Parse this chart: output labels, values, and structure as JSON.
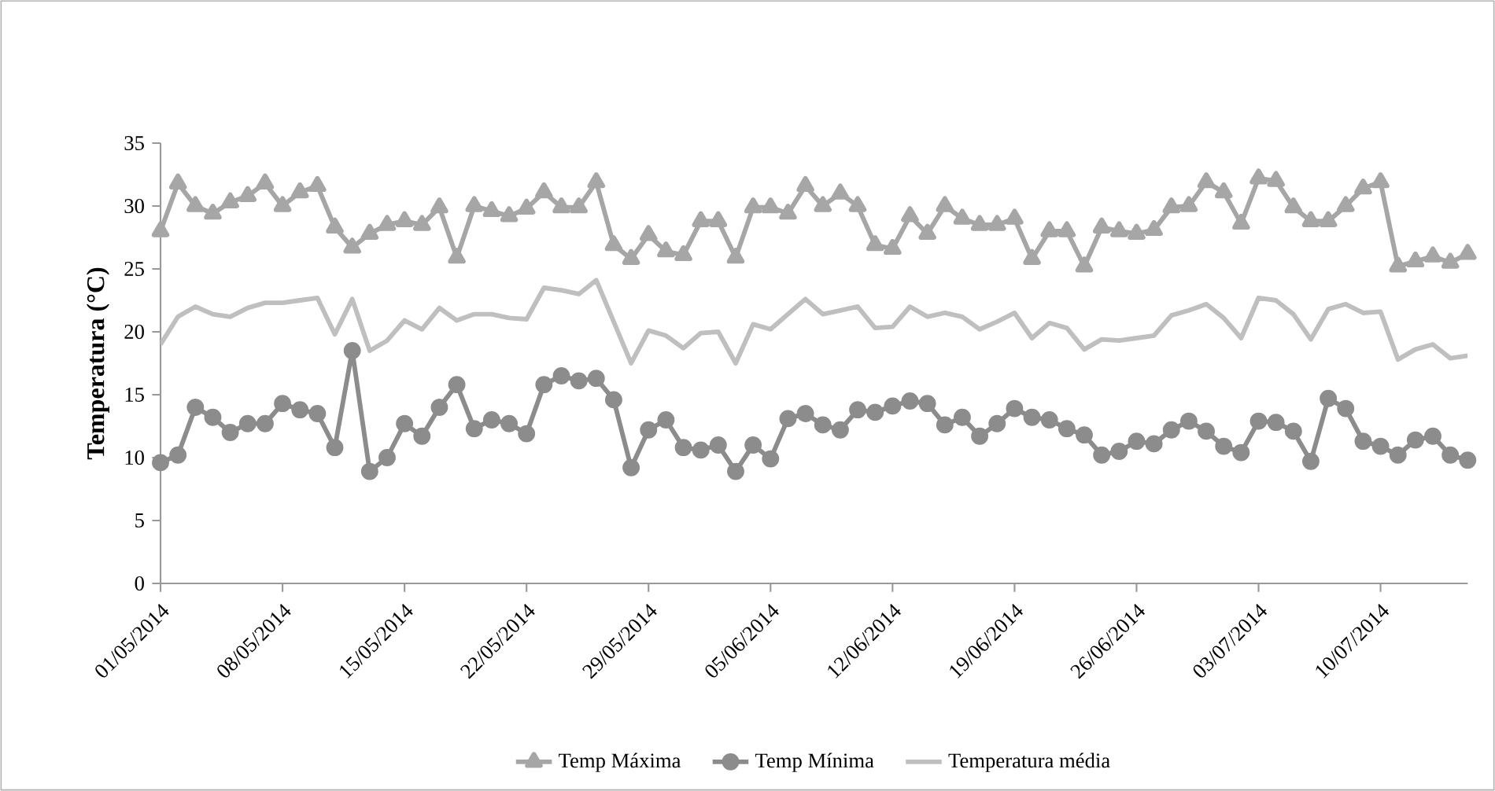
{
  "chart_data": {
    "type": "line",
    "ylabel": "Temperatura  (°C)",
    "legend": "bottom",
    "grid": false,
    "x": [
      "2014-05-01",
      "2014-05-02",
      "2014-05-03",
      "2014-05-04",
      "2014-05-05",
      "2014-05-06",
      "2014-05-07",
      "2014-05-08",
      "2014-05-09",
      "2014-05-10",
      "2014-05-11",
      "2014-05-12",
      "2014-05-13",
      "2014-05-14",
      "2014-05-15",
      "2014-05-16",
      "2014-05-17",
      "2014-05-18",
      "2014-05-19",
      "2014-05-20",
      "2014-05-21",
      "2014-05-22",
      "2014-05-23",
      "2014-05-24",
      "2014-05-25",
      "2014-05-26",
      "2014-05-27",
      "2014-05-28",
      "2014-05-29",
      "2014-05-30",
      "2014-05-31",
      "2014-06-01",
      "2014-06-02",
      "2014-06-03",
      "2014-06-04",
      "2014-06-05",
      "2014-06-06",
      "2014-06-07",
      "2014-06-08",
      "2014-06-09",
      "2014-06-10",
      "2014-06-11",
      "2014-06-12",
      "2014-06-13",
      "2014-06-14",
      "2014-06-15",
      "2014-06-16",
      "2014-06-17",
      "2014-06-18",
      "2014-06-19",
      "2014-06-20",
      "2014-06-21",
      "2014-06-22",
      "2014-06-23",
      "2014-06-24",
      "2014-06-25",
      "2014-06-26",
      "2014-06-27",
      "2014-06-28",
      "2014-06-29",
      "2014-06-30",
      "2014-07-01",
      "2014-07-02",
      "2014-07-03",
      "2014-07-04",
      "2014-07-05",
      "2014-07-06",
      "2014-07-07",
      "2014-07-08",
      "2014-07-09",
      "2014-07-10",
      "2014-07-11",
      "2014-07-12",
      "2014-07-13",
      "2014-07-14",
      "2014-07-15"
    ],
    "xlim": [
      "2014-05-01",
      "2014-07-15"
    ],
    "xticks": [
      {
        "value": "2014-05-01",
        "label": "01/05/2014"
      },
      {
        "value": "2014-05-08",
        "label": "08/05/2014"
      },
      {
        "value": "2014-05-15",
        "label": "15/05/2014"
      },
      {
        "value": "2014-05-22",
        "label": "22/05/2014"
      },
      {
        "value": "2014-05-29",
        "label": "29/05/2014"
      },
      {
        "value": "2014-06-05",
        "label": "05/06/2014"
      },
      {
        "value": "2014-06-12",
        "label": "12/06/2014"
      },
      {
        "value": "2014-06-19",
        "label": "19/06/2014"
      },
      {
        "value": "2014-06-26",
        "label": "26/06/2014"
      },
      {
        "value": "2014-07-03",
        "label": "03/07/2014"
      },
      {
        "value": "2014-07-10",
        "label": "10/07/2014"
      }
    ],
    "ylim": [
      0,
      35
    ],
    "yticks": [
      0,
      5,
      10,
      15,
      20,
      25,
      30,
      35
    ],
    "series": [
      {
        "name": "Temp Máxima",
        "color": "#a6a6a6",
        "marker": "triangle",
        "values": [
          28.0,
          31.8,
          30.0,
          29.4,
          30.3,
          30.8,
          31.8,
          30.0,
          31.1,
          31.6,
          28.3,
          26.7,
          27.8,
          28.5,
          28.8,
          28.5,
          29.9,
          25.9,
          30.0,
          29.6,
          29.2,
          29.8,
          31.1,
          29.9,
          29.9,
          31.9,
          26.9,
          25.8,
          27.7,
          26.4,
          26.1,
          28.8,
          28.8,
          25.9,
          29.9,
          29.9,
          29.4,
          31.6,
          30.0,
          31.0,
          30.0,
          26.9,
          26.6,
          29.2,
          27.8,
          30.0,
          29.0,
          28.5,
          28.5,
          29.0,
          25.8,
          28.0,
          28.0,
          25.2,
          28.3,
          28.0,
          27.8,
          28.1,
          29.9,
          30.0,
          31.9,
          31.1,
          28.6,
          32.2,
          32.0,
          29.9,
          28.8,
          28.8,
          30.0,
          31.4,
          31.9,
          25.2,
          25.6,
          26.0,
          25.5,
          26.2
        ]
      },
      {
        "name": "Temp Mínima",
        "color": "#8c8c8c",
        "marker": "circle",
        "values": [
          9.6,
          10.2,
          14.0,
          13.2,
          12.0,
          12.7,
          12.7,
          14.3,
          13.8,
          13.5,
          10.8,
          18.5,
          8.9,
          10.0,
          12.7,
          11.7,
          14.0,
          15.8,
          12.3,
          13.0,
          12.7,
          11.9,
          15.8,
          16.5,
          16.1,
          16.3,
          14.6,
          9.2,
          12.2,
          13.0,
          10.8,
          10.6,
          11.0,
          8.9,
          11.0,
          9.9,
          13.1,
          13.5,
          12.6,
          12.2,
          13.8,
          13.6,
          14.1,
          14.5,
          14.3,
          12.6,
          13.2,
          11.7,
          12.7,
          13.9,
          13.2,
          13.0,
          12.3,
          11.8,
          10.2,
          10.5,
          11.3,
          11.1,
          12.2,
          12.9,
          12.1,
          10.9,
          10.4,
          12.9,
          12.8,
          12.1,
          9.7,
          14.7,
          13.9,
          11.3,
          10.9,
          10.2,
          11.4,
          11.7,
          10.2,
          9.8
        ]
      },
      {
        "name": "Temperatura média",
        "color": "#bfbfbf",
        "marker": "none",
        "values": [
          19.0,
          21.2,
          22.0,
          21.4,
          21.2,
          21.9,
          22.3,
          22.3,
          22.5,
          22.7,
          19.8,
          22.6,
          18.5,
          19.3,
          20.9,
          20.2,
          21.9,
          20.9,
          21.4,
          21.4,
          21.1,
          21.0,
          23.5,
          23.3,
          23.0,
          24.1,
          20.8,
          17.5,
          20.1,
          19.7,
          18.7,
          19.9,
          20.0,
          17.5,
          20.6,
          20.2,
          21.4,
          22.6,
          21.4,
          21.7,
          22.0,
          20.3,
          20.4,
          22.0,
          21.2,
          21.5,
          21.2,
          20.2,
          20.8,
          21.5,
          19.5,
          20.7,
          20.3,
          18.6,
          19.4,
          19.3,
          19.5,
          19.7,
          21.3,
          21.7,
          22.2,
          21.1,
          19.5,
          22.7,
          22.5,
          21.4,
          19.4,
          21.8,
          22.2,
          21.5,
          21.6,
          17.8,
          18.6,
          19.0,
          17.9,
          18.1
        ]
      }
    ]
  }
}
